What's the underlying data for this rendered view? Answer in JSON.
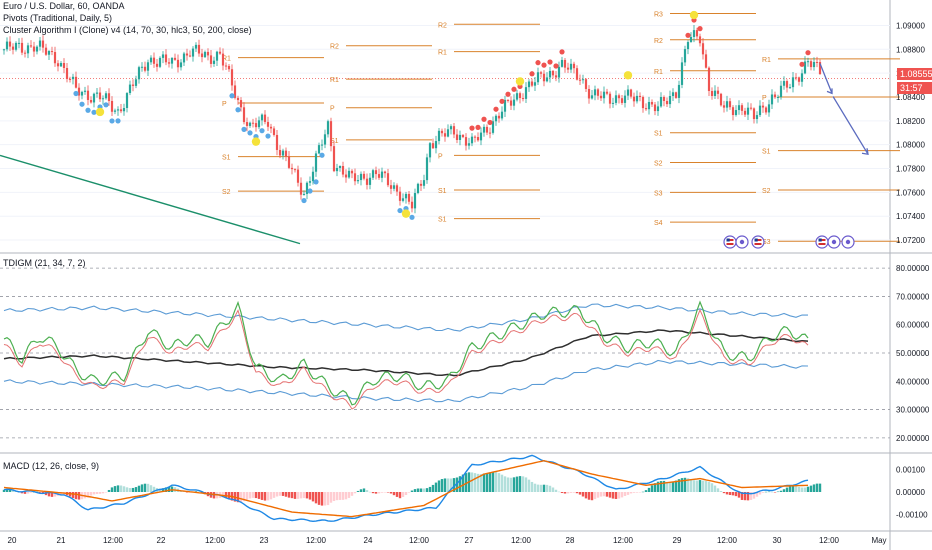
{
  "header": {
    "symbol_line": "Euro / U.S. Dollar, 60, OANDA",
    "pivots_line": "Pivots (Traditional, Daily, 5)",
    "cluster_line": "Cluster Algorithm I (Clone) v4 (14, 70, 30, hlc3, 50, 200, close)",
    "tdi_line": "TDIGM (21, 34, 7, 2)",
    "macd_line": "MACD (12, 26, close, 9)"
  },
  "price_badge": {
    "price": "1.08555",
    "countdown": "31:57"
  },
  "colors": {
    "up": "#26a69a",
    "down": "#ef5350",
    "pivot": "#d9822b",
    "trend": "#1b8f6a",
    "arrow": "#5b6bbf",
    "bb": "#5b9bd5",
    "tdi_green": "#4caf50",
    "tdi_red": "#e57373",
    "tdi_mid": "#2f2f2f",
    "macd_line": "#1e88e5",
    "signal_line": "#ef6c00"
  },
  "chart_data": [
    {
      "type": "candlestick",
      "name": "main",
      "yticks": [
        "1.09000",
        "1.08800",
        "1.08600",
        "1.08400",
        "1.08200",
        "1.08000",
        "1.07800",
        "1.07600",
        "1.07400",
        "1.07200"
      ],
      "ylim": [
        1.0715,
        1.0918
      ],
      "xlabels": [
        "20",
        "21",
        "12:00",
        "22",
        "12:00",
        "23",
        "12:00",
        "24",
        "12:00",
        "27",
        "12:00",
        "28",
        "12:00",
        "29",
        "12:00",
        "30",
        "12:00",
        "May"
      ],
      "anchors": [
        [
          0,
          1.088
        ],
        [
          10,
          1.0883
        ],
        [
          18,
          1.0872
        ],
        [
          24,
          1.0845
        ],
        [
          32,
          1.084
        ],
        [
          38,
          1.0828
        ],
        [
          48,
          1.0872
        ],
        [
          56,
          1.0868
        ],
        [
          62,
          1.0878
        ],
        [
          68,
          1.0874
        ],
        [
          72,
          1.0876
        ],
        [
          78,
          1.0836
        ],
        [
          82,
          1.0815
        ],
        [
          88,
          1.082
        ],
        [
          92,
          1.0795
        ],
        [
          100,
          1.076
        ],
        [
          108,
          1.0815
        ],
        [
          110,
          1.0785
        ],
        [
          116,
          1.077
        ],
        [
          124,
          1.0776
        ],
        [
          132,
          1.076
        ],
        [
          136,
          1.0748
        ],
        [
          140,
          1.0775
        ],
        [
          142,
          1.0802
        ],
        [
          150,
          1.0812
        ],
        [
          156,
          1.08
        ],
        [
          166,
          1.0828
        ],
        [
          174,
          1.0848
        ],
        [
          186,
          1.0866
        ],
        [
          192,
          1.0858
        ],
        [
          196,
          1.084
        ],
        [
          204,
          1.084
        ],
        [
          212,
          1.0838
        ],
        [
          218,
          1.083
        ],
        [
          224,
          1.0845
        ],
        [
          228,
          1.0888
        ],
        [
          232,
          1.089
        ],
        [
          235,
          1.085
        ],
        [
          240,
          1.083
        ],
        [
          246,
          1.0832
        ],
        [
          250,
          1.0822
        ],
        [
          256,
          1.084
        ],
        [
          262,
          1.085
        ],
        [
          268,
          1.087
        ],
        [
          272,
          1.086
        ]
      ],
      "pivots": [
        {
          "label": "R1",
          "price": 1.0873,
          "from": 72,
          "to": 108
        },
        {
          "label": "P",
          "price": 1.0835,
          "from": 72,
          "to": 108
        },
        {
          "label": "S1",
          "price": 1.079,
          "from": 72,
          "to": 108
        },
        {
          "label": "S2",
          "price": 1.0761,
          "from": 72,
          "to": 108
        },
        {
          "label": "R2",
          "price": 1.0883,
          "from": 108,
          "to": 144
        },
        {
          "label": "R1",
          "price": 1.0855,
          "from": 108,
          "to": 144
        },
        {
          "label": "P",
          "price": 1.0831,
          "from": 108,
          "to": 144
        },
        {
          "label": "S1",
          "price": 1.0804,
          "from": 108,
          "to": 144
        },
        {
          "label": "R2",
          "price": 1.0901,
          "from": 144,
          "to": 180
        },
        {
          "label": "R1",
          "price": 1.0878,
          "from": 144,
          "to": 180
        },
        {
          "label": "P",
          "price": 1.0791,
          "from": 144,
          "to": 180
        },
        {
          "label": "S1",
          "price": 1.0762,
          "from": 144,
          "to": 180
        },
        {
          "label": "S1",
          "price": 1.0738,
          "from": 144,
          "to": 180
        },
        {
          "label": "R3",
          "price": 1.091,
          "from": 216,
          "to": 252
        },
        {
          "label": "R2",
          "price": 1.0888,
          "from": 216,
          "to": 252
        },
        {
          "label": "R1",
          "price": 1.0862,
          "from": 216,
          "to": 252
        },
        {
          "label": "S1",
          "price": 1.081,
          "from": 216,
          "to": 252
        },
        {
          "label": "S2",
          "price": 1.0785,
          "from": 216,
          "to": 252
        },
        {
          "label": "S3",
          "price": 1.076,
          "from": 216,
          "to": 252
        },
        {
          "label": "S4",
          "price": 1.0735,
          "from": 216,
          "to": 252
        },
        {
          "label": "R1",
          "price": 1.0872,
          "from": 252,
          "to": 300
        },
        {
          "label": "P",
          "price": 1.084,
          "from": 252,
          "to": 300
        },
        {
          "label": "S1",
          "price": 1.0795,
          "from": 252,
          "to": 300
        },
        {
          "label": "S2",
          "price": 1.0762,
          "from": 252,
          "to": 300
        },
        {
          "label": "S3",
          "price": 1.0719,
          "from": 252,
          "to": 300
        }
      ],
      "current_price": 1.08555
    },
    {
      "type": "line",
      "name": "TDIGM",
      "yticks": [
        "80.00000",
        "70.00000",
        "60.00000",
        "50.00000",
        "40.00000",
        "30.00000",
        "20.00000"
      ],
      "ylim": [
        15,
        85
      ],
      "levels": [
        80,
        70,
        50,
        30,
        20
      ],
      "green": [
        [
          0,
          55
        ],
        [
          6,
          48
        ],
        [
          12,
          56
        ],
        [
          18,
          52
        ],
        [
          24,
          44
        ],
        [
          30,
          40
        ],
        [
          40,
          42
        ],
        [
          48,
          58
        ],
        [
          56,
          52
        ],
        [
          62,
          55
        ],
        [
          68,
          54
        ],
        [
          78,
          66
        ],
        [
          84,
          45
        ],
        [
          92,
          40
        ],
        [
          100,
          46
        ],
        [
          108,
          38
        ],
        [
          116,
          33
        ],
        [
          124,
          41
        ],
        [
          132,
          42
        ],
        [
          140,
          38
        ],
        [
          148,
          40
        ],
        [
          156,
          52
        ],
        [
          168,
          58
        ],
        [
          180,
          64
        ],
        [
          192,
          65
        ],
        [
          200,
          56
        ],
        [
          208,
          52
        ],
        [
          216,
          54
        ],
        [
          224,
          50
        ],
        [
          232,
          66
        ],
        [
          240,
          50
        ],
        [
          248,
          48
        ],
        [
          256,
          56
        ],
        [
          262,
          58
        ],
        [
          268,
          54
        ]
      ],
      "red_offset": -2,
      "mid": [
        [
          0,
          48
        ],
        [
          30,
          49
        ],
        [
          60,
          47
        ],
        [
          90,
          45
        ],
        [
          120,
          44
        ],
        [
          150,
          42
        ],
        [
          175,
          48
        ],
        [
          195,
          56
        ],
        [
          220,
          58
        ],
        [
          245,
          56
        ],
        [
          268,
          54
        ]
      ],
      "upper": [
        [
          0,
          65
        ],
        [
          30,
          66
        ],
        [
          60,
          64
        ],
        [
          90,
          62
        ],
        [
          120,
          60
        ],
        [
          150,
          58
        ],
        [
          175,
          62
        ],
        [
          195,
          67
        ],
        [
          220,
          66
        ],
        [
          245,
          64
        ],
        [
          268,
          63
        ]
      ],
      "lower": [
        [
          0,
          40
        ],
        [
          30,
          39
        ],
        [
          60,
          38
        ],
        [
          90,
          36
        ],
        [
          120,
          34
        ],
        [
          150,
          33
        ],
        [
          175,
          38
        ],
        [
          195,
          44
        ],
        [
          220,
          47
        ],
        [
          245,
          46
        ],
        [
          268,
          45
        ]
      ]
    },
    {
      "type": "bar",
      "name": "MACD",
      "yticks": [
        "0.00100",
        "0.00000",
        "-0.00100"
      ],
      "ylim": [
        -0.0017,
        0.0017
      ],
      "hist": [
        [
          0,
          0.0001
        ],
        [
          20,
          -0.0002
        ],
        [
          28,
          -0.0003
        ],
        [
          36,
          0.0002
        ],
        [
          48,
          0.0003
        ],
        [
          60,
          0.0001
        ],
        [
          76,
          -0.0004
        ],
        [
          88,
          -0.0003
        ],
        [
          96,
          -0.0002
        ],
        [
          108,
          -0.0006
        ],
        [
          120,
          0.0001
        ],
        [
          132,
          -0.0002
        ],
        [
          150,
          0.0007
        ],
        [
          160,
          0.0009
        ],
        [
          174,
          0.0006
        ],
        [
          184,
          0.0001
        ],
        [
          196,
          -0.0003
        ],
        [
          208,
          -0.0002
        ],
        [
          220,
          0.0005
        ],
        [
          232,
          0.0006
        ],
        [
          246,
          -0.0004
        ],
        [
          258,
          0.0001
        ],
        [
          268,
          0.0003
        ]
      ],
      "macd": [
        [
          0,
          0.0001
        ],
        [
          20,
          -0.0001
        ],
        [
          28,
          -0.0008
        ],
        [
          40,
          -0.0005
        ],
        [
          56,
          0.0003
        ],
        [
          76,
          -0.0003
        ],
        [
          90,
          -0.0012
        ],
        [
          108,
          -0.0013
        ],
        [
          124,
          -0.001
        ],
        [
          144,
          -0.0007
        ],
        [
          156,
          0.0012
        ],
        [
          176,
          0.0016
        ],
        [
          192,
          0.0009
        ],
        [
          204,
          0.0001
        ],
        [
          220,
          0.0006
        ],
        [
          232,
          0.0011
        ],
        [
          246,
          -0.0001
        ],
        [
          256,
          0.0001
        ],
        [
          268,
          0.0005
        ]
      ],
      "signal": [
        [
          0,
          0.0002
        ],
        [
          24,
          -0.0001
        ],
        [
          36,
          -0.0004
        ],
        [
          56,
          0.0001
        ],
        [
          76,
          -0.0002
        ],
        [
          96,
          -0.0009
        ],
        [
          116,
          -0.0011
        ],
        [
          140,
          -0.0006
        ],
        [
          160,
          0.0008
        ],
        [
          180,
          0.0014
        ],
        [
          196,
          0.0008
        ],
        [
          214,
          0.0003
        ],
        [
          232,
          0.0006
        ],
        [
          246,
          0.0002
        ],
        [
          268,
          0.0003
        ]
      ]
    }
  ]
}
